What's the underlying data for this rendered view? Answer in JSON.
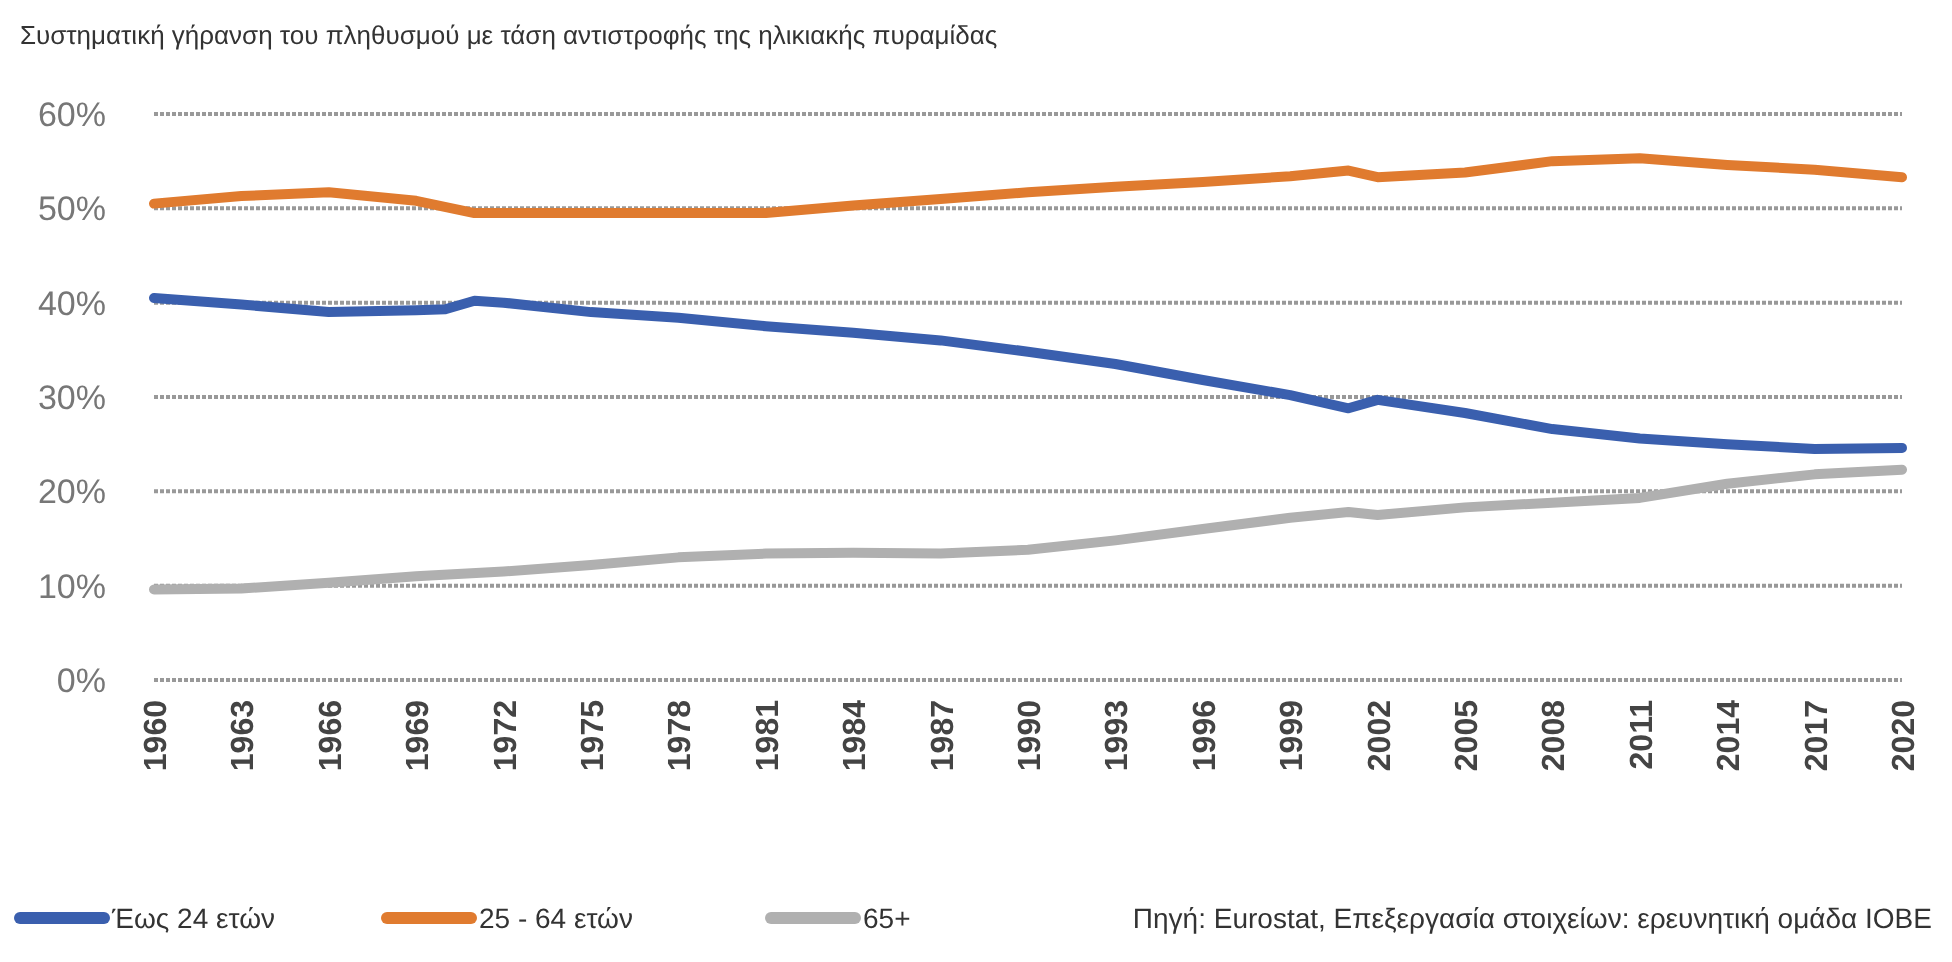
{
  "chart_data": {
    "type": "line",
    "title": "Συστηματική γήρανση του πληθυσμού με τάση αντιστροφής της ηλικιακής πυραμίδας",
    "annotations": [
      "Πηγή: Eurostat, Επεξεργασία στοιχείων: ερευνητική ομάδα ΙΟΒΕ"
    ],
    "series": [
      {
        "name": "Έως 24 ετών",
        "color": "#3a5fae",
        "x": [
          1960,
          1963,
          1966,
          1969,
          1970,
          1971,
          1972,
          1975,
          1978,
          1981,
          1984,
          1987,
          1990,
          1993,
          1996,
          1999,
          2001,
          2002,
          2005,
          2008,
          2011,
          2014,
          2017,
          2020
        ],
        "values": [
          40.5,
          39.8,
          39,
          39.2,
          39.3,
          40.2,
          40,
          39,
          38.4,
          37.5,
          36.8,
          36,
          34.8,
          33.5,
          31.8,
          30.2,
          28.8,
          29.7,
          28.3,
          26.6,
          25.6,
          25,
          24.5,
          24.6
        ]
      },
      {
        "name": "25 - 64 ετών",
        "color": "#e07b2f",
        "x": [
          1960,
          1963,
          1966,
          1969,
          1971,
          1975,
          1978,
          1981,
          1984,
          1987,
          1990,
          1993,
          1996,
          1999,
          2001,
          2002,
          2005,
          2008,
          2011,
          2014,
          2017,
          2020
        ],
        "values": [
          50.5,
          51.3,
          51.7,
          50.8,
          49.5,
          49.5,
          49.5,
          49.5,
          50.3,
          51,
          51.7,
          52.3,
          52.8,
          53.4,
          54,
          53.3,
          53.8,
          55,
          55.3,
          54.6,
          54.1,
          53.3
        ]
      },
      {
        "name": "65+",
        "color": "#b0b0b0",
        "x": [
          1960,
          1963,
          1966,
          1969,
          1972,
          1975,
          1978,
          1981,
          1984,
          1987,
          1990,
          1993,
          1996,
          1999,
          2001,
          2002,
          2005,
          2008,
          2011,
          2014,
          2017,
          2020
        ],
        "values": [
          9.6,
          9.7,
          10.3,
          11,
          11.5,
          12.2,
          13,
          13.4,
          13.5,
          13.4,
          13.8,
          14.8,
          16,
          17.2,
          17.8,
          17.5,
          18.3,
          18.8,
          19.3,
          20.8,
          21.8,
          22.3
        ]
      }
    ],
    "xlim": [
      1960,
      2020
    ],
    "xticks": [
      1960,
      1963,
      1966,
      1969,
      1972,
      1975,
      1978,
      1981,
      1984,
      1987,
      1990,
      1993,
      1996,
      1999,
      2002,
      2005,
      2008,
      2011,
      2014,
      2017,
      2020
    ],
    "ylim": [
      0,
      60
    ],
    "yticks": [
      {
        "value": 0,
        "label": "0%"
      },
      {
        "value": 10,
        "label": "10%"
      },
      {
        "value": 20,
        "label": "20%"
      },
      {
        "value": 30,
        "label": "30%"
      },
      {
        "value": 40,
        "label": "40%"
      },
      {
        "value": 50,
        "label": "50%"
      },
      {
        "value": 60,
        "label": "60%"
      }
    ],
    "grid": "y",
    "legend": "bottom left",
    "marker": "none",
    "line_style": "solid"
  }
}
